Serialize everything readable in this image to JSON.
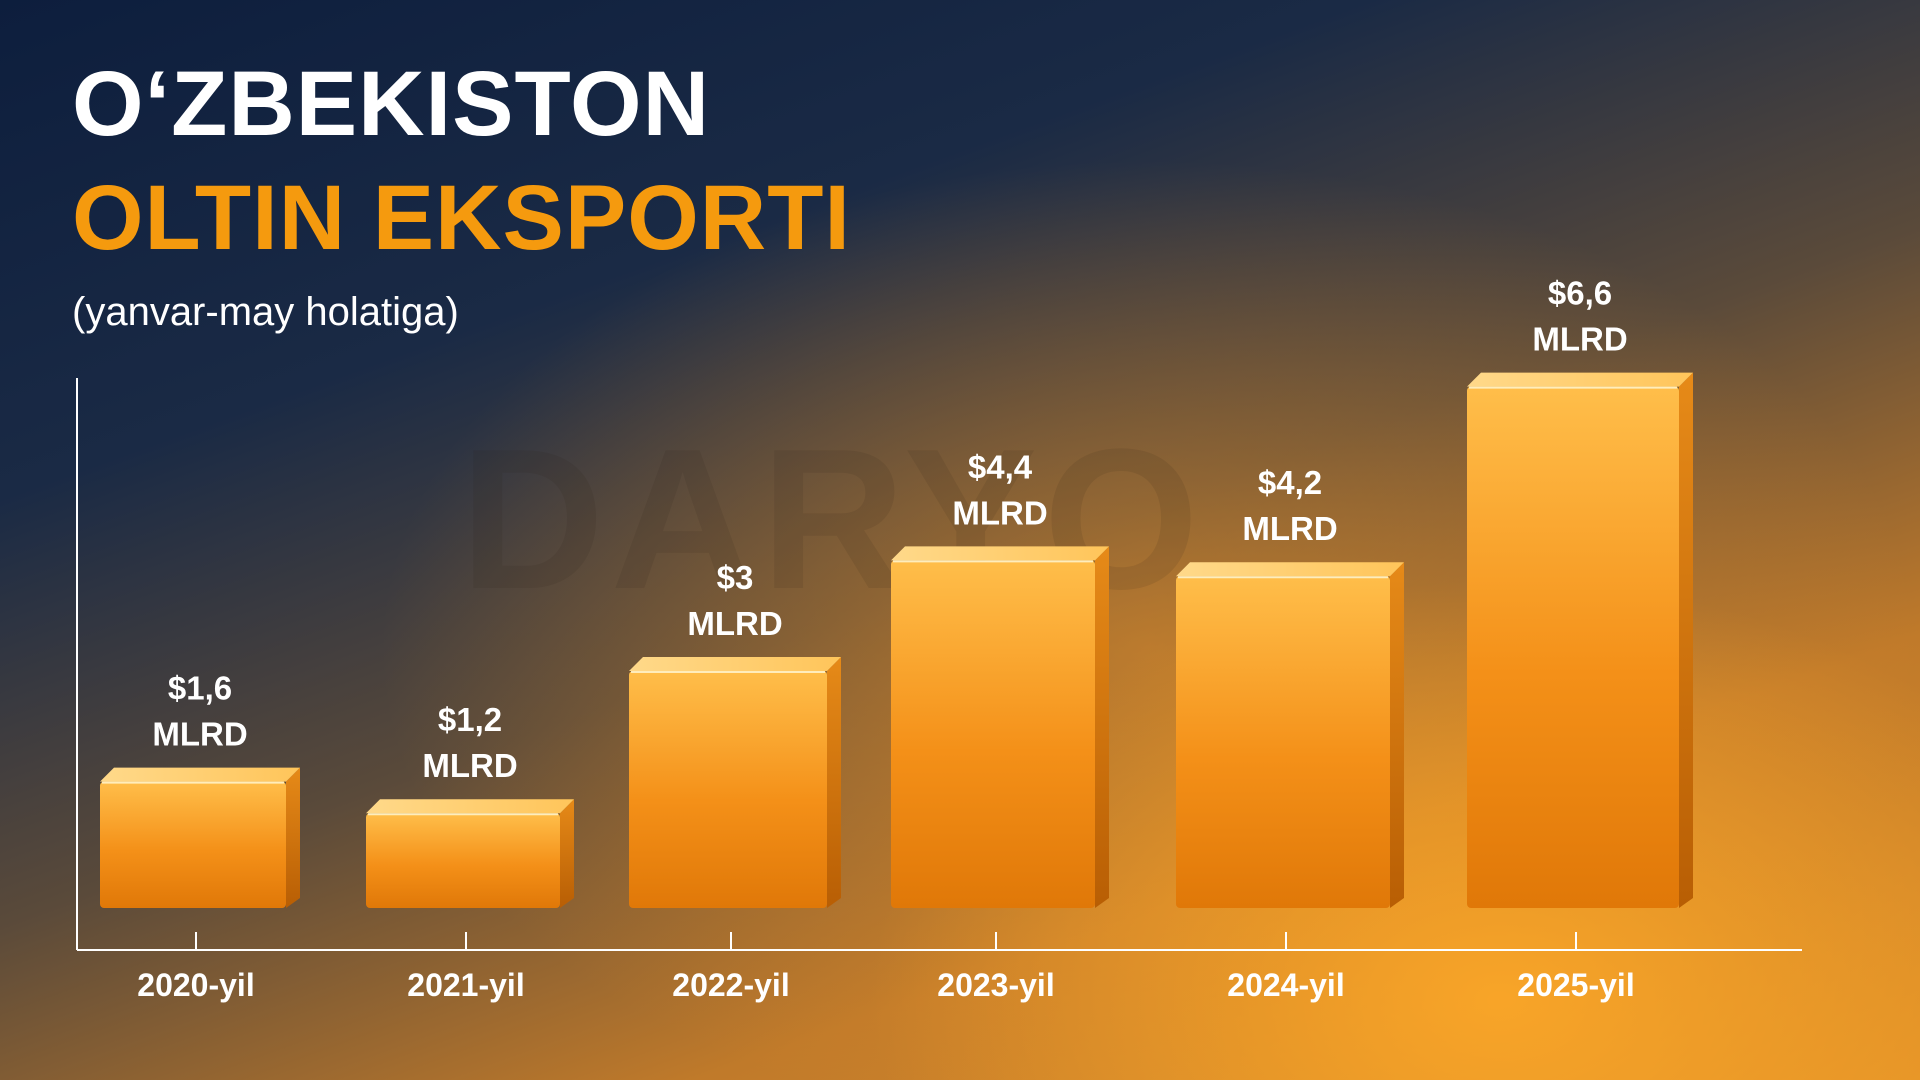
{
  "header": {
    "title_line1": "O‘ZBEKISTON",
    "title_line2": "OLTIN EKSPORTI",
    "subtitle": "(yanvar-may holatiga)"
  },
  "watermark": "DARYO",
  "colors": {
    "accent": "#f59a0e",
    "bar_front_top": "#ffb640",
    "bar_front_bottom": "#e07a08",
    "bar_side": "#c86a06",
    "bar_top": "#ffd27a"
  },
  "chart_data": {
    "type": "bar",
    "categories": [
      "2020-yil",
      "2021-yil",
      "2022-yil",
      "2023-yil",
      "2024-yil",
      "2025-yil"
    ],
    "values": [
      1.6,
      1.2,
      3,
      4.4,
      4.2,
      6.6
    ],
    "value_labels": [
      "$1,6",
      "$1,2",
      "$3",
      "$4,4",
      "$4,2",
      "$6,6"
    ],
    "unit_label": "MLRD",
    "title": "O‘ZBEKISTON OLTIN EKSPORTI",
    "subtitle": "(yanvar-may holatiga)",
    "xlabel": "",
    "ylabel": "",
    "ylim": [
      0,
      8
    ],
    "grid": false,
    "legend": "none"
  }
}
